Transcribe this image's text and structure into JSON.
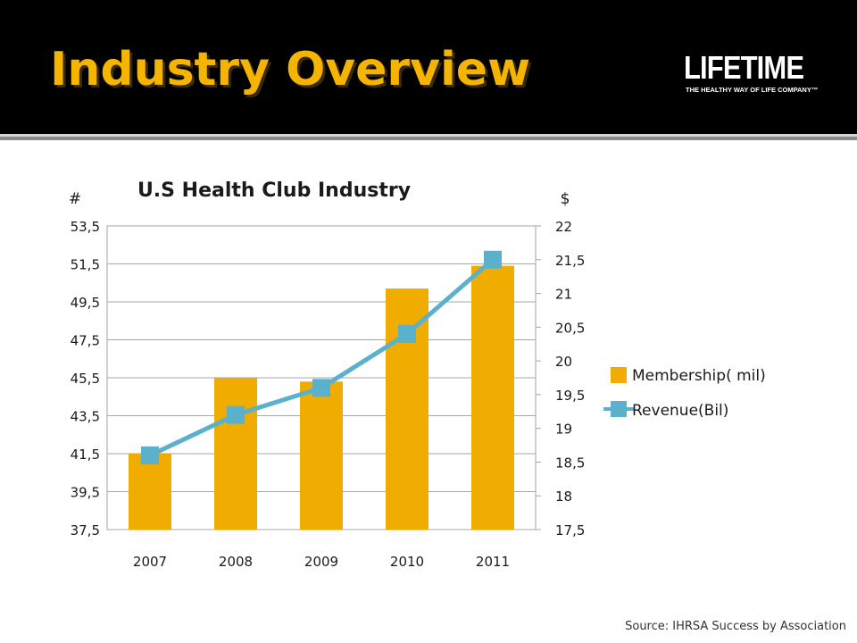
{
  "header": {
    "title": "Industry Overview",
    "logo": {
      "wordmark": "LIFETIME",
      "tagline": "THE HEALTHY WAY OF LIFE COMPANY™"
    }
  },
  "colors": {
    "banner": "#000000",
    "title": "#f5b400",
    "bar": "#f0ad00",
    "line": "#5bb0cc"
  },
  "chart_data": {
    "type": "bar",
    "title": "U.S Health Club Industry",
    "y_left_label": "#",
    "y_right_label": "$",
    "categories": [
      "2007",
      "2008",
      "2009",
      "2010",
      "2011"
    ],
    "y_left_ticks": [
      "53,5",
      "51,5",
      "49,5",
      "47,5",
      "45,5",
      "43,5",
      "41,5",
      "39,5",
      "37,5"
    ],
    "y_right_ticks": [
      "22",
      "21,5",
      "21",
      "20,5",
      "20",
      "19,5",
      "19",
      "18,5",
      "18",
      "17,5"
    ],
    "ylim_left": [
      37.5,
      53.5
    ],
    "ylim_right": [
      17.5,
      22
    ],
    "grid": "horizontal",
    "legend_position": "right",
    "series": [
      {
        "name": "Membership( mil)",
        "type": "bar",
        "axis": "left",
        "values": [
          41.5,
          45.5,
          45.3,
          50.2,
          51.4
        ]
      },
      {
        "name": "Revenue(Bil)",
        "type": "line",
        "axis": "right",
        "values": [
          18.6,
          19.2,
          19.6,
          20.4,
          21.5
        ]
      }
    ]
  },
  "footer": {
    "source": "Source: IHRSA Success by Association"
  }
}
